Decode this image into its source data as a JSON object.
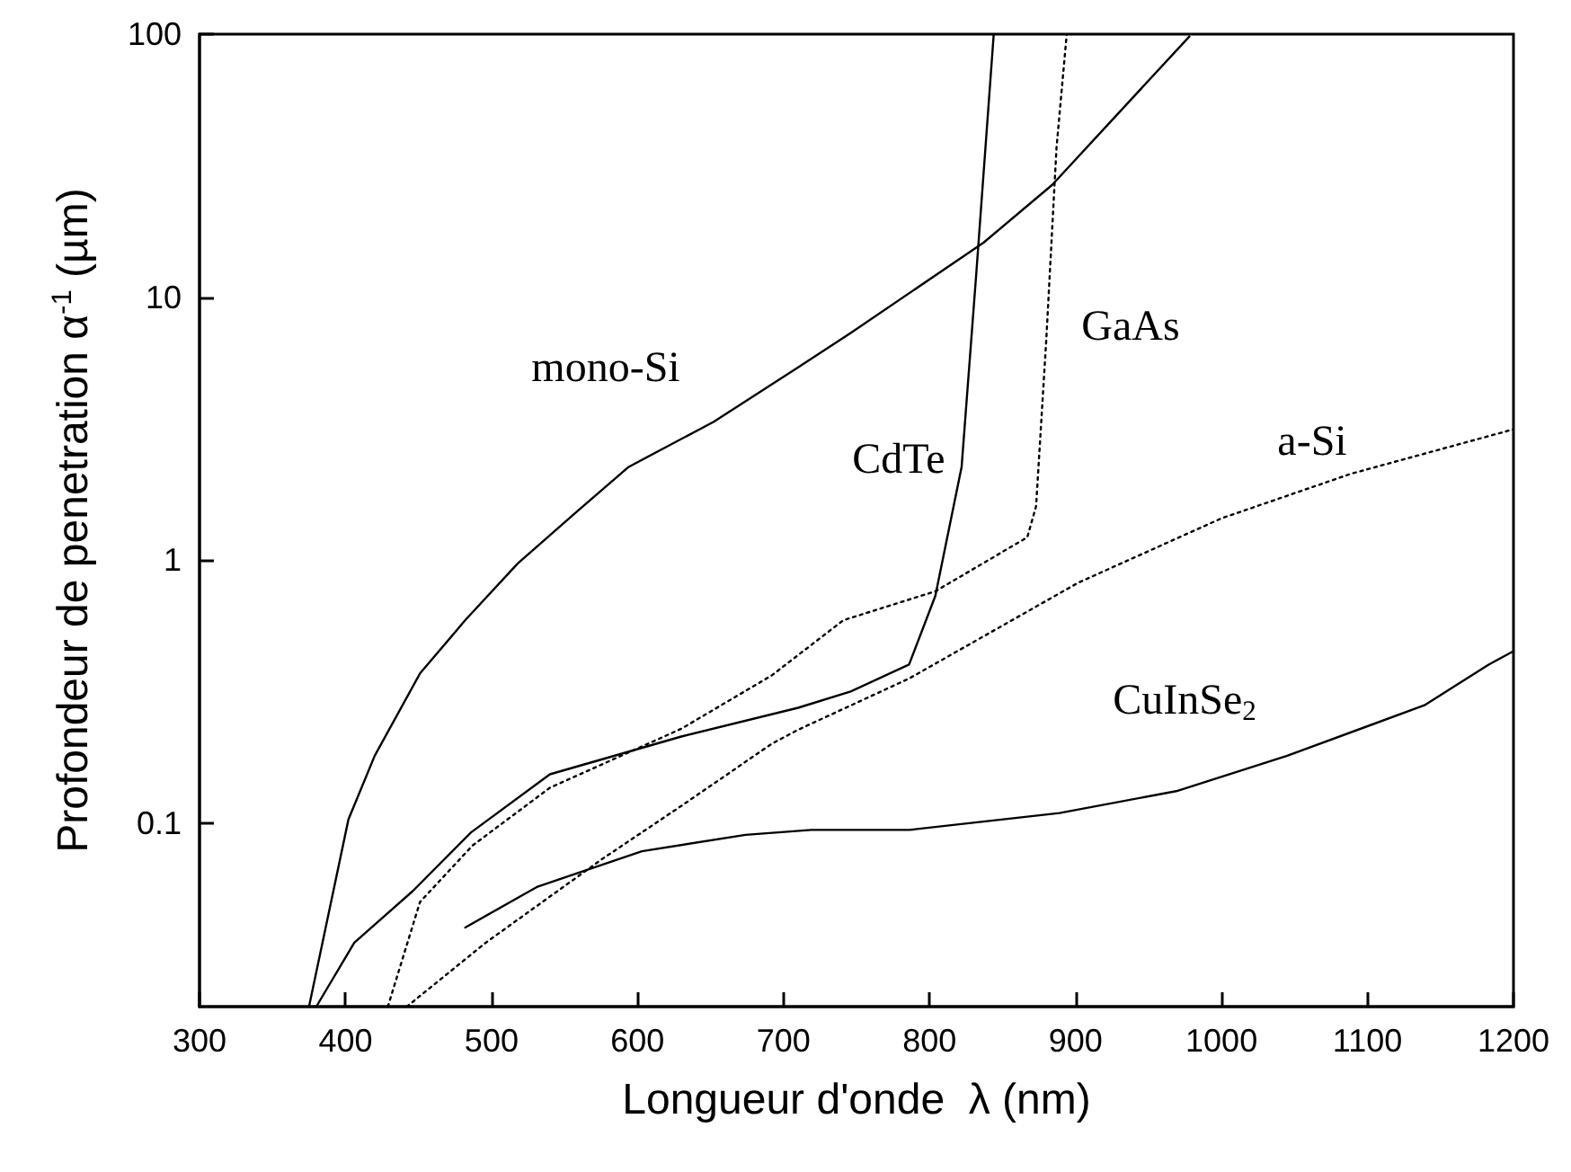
{
  "chart_data": {
    "type": "line",
    "xlabel": "Longueur d'onde  λ (nm)",
    "ylabel": "Profondeur de penetration α$^{-1}$ (µm)",
    "xlim": [
      300,
      1200
    ],
    "xticks": [
      300,
      400,
      500,
      600,
      700,
      800,
      900,
      1000,
      1100,
      1200
    ],
    "ylim": [
      0.02,
      100
    ],
    "yticks": [
      0.1,
      1,
      10,
      100
    ],
    "log": "y",
    "grid": false,
    "marker": "none",
    "series": [
      {
        "color": "#000000",
        "line_style": "solid",
        "x": [
          375,
          402,
          420,
          451,
          482,
          518,
          558,
          594,
          652,
          710,
          746,
          837,
          884,
          978
        ],
        "values": [
          0.02,
          0.103,
          0.18,
          0.37,
          0.59,
          0.97,
          1.52,
          2.26,
          3.35,
          5.4,
          7.3,
          16.1,
          26.7,
          98
        ]
      },
      {
        "color": "#000000",
        "line_style": "solid",
        "x": [
          380,
          406,
          446,
          486,
          540,
          630,
          710,
          746,
          786,
          804,
          822,
          832,
          844
        ],
        "values": [
          0.02,
          0.035,
          0.055,
          0.092,
          0.153,
          0.213,
          0.274,
          0.316,
          0.4,
          0.73,
          2.26,
          12.2,
          100
        ]
      },
      {
        "color": "#000000",
        "line_style": "dotted",
        "x": [
          429,
          451,
          487,
          540,
          630,
          692,
          741,
          804,
          867,
          873,
          880,
          887,
          894
        ],
        "values": [
          0.02,
          0.05,
          0.082,
          0.136,
          0.228,
          0.364,
          0.59,
          0.76,
          1.22,
          1.6,
          6.9,
          37,
          100
        ]
      },
      {
        "color": "#000000",
        "line_style": "dotted",
        "x": [
          442,
          496,
          576,
          630,
          692,
          710,
          786,
          902,
          1000,
          1089,
          1200
        ],
        "values": [
          0.02,
          0.035,
          0.073,
          0.116,
          0.2,
          0.226,
          0.354,
          0.82,
          1.44,
          2.13,
          3.14
        ]
      },
      {
        "color": "#000000",
        "line_style": "solid",
        "x": [
          482,
          531,
          603,
          674,
          719,
          786,
          889,
          969,
          1045,
          1139,
          1183,
          1200
        ],
        "values": [
          0.04,
          0.057,
          0.078,
          0.09,
          0.094,
          0.094,
          0.109,
          0.132,
          0.18,
          0.28,
          0.4,
          0.45
        ]
      }
    ],
    "annotations": [
      "mono-Si",
      "CdTe",
      "GaAs",
      "a-Si",
      "CuInSe$_{2}$"
    ]
  }
}
